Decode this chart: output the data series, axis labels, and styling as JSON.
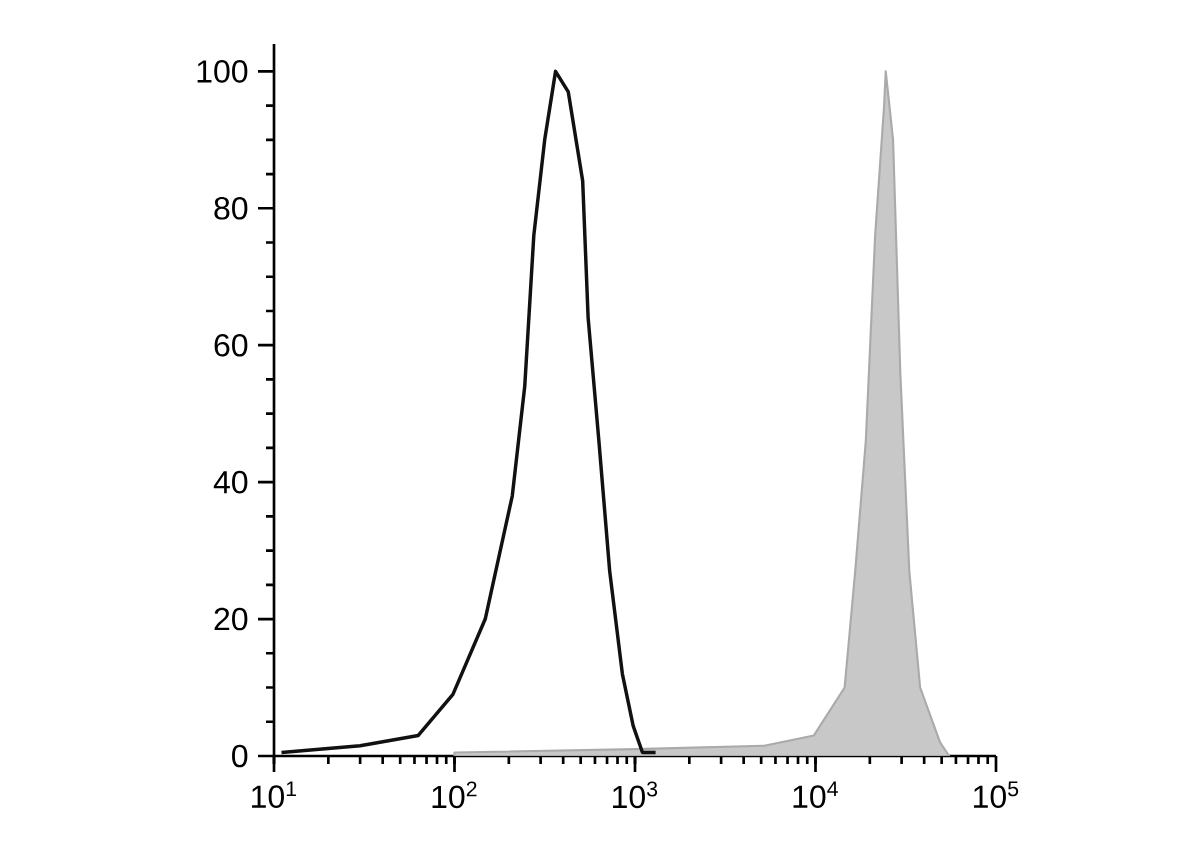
{
  "chart_data": {
    "type": "line",
    "log": "x",
    "grid": false,
    "xlim": [
      10,
      100000
    ],
    "ylim": [
      0,
      104
    ],
    "xticks": [
      {
        "value": 10,
        "label": "10$^{1}$"
      },
      {
        "value": 100,
        "label": "10$^{2}$"
      },
      {
        "value": 1000,
        "label": "10$^{3}$"
      },
      {
        "value": 10000,
        "label": "10$^{4}$"
      },
      {
        "value": 100000,
        "label": "10$^{5}$"
      }
    ],
    "yticks": [
      0,
      20,
      40,
      60,
      80,
      100
    ],
    "series": [
      {
        "type": "area",
        "color": "#c8c8c8",
        "x": [
          100,
          1000,
          5200,
          9800,
          14500,
          16600,
          19000,
          21400,
          24000,
          24500,
          26900,
          29500,
          33100,
          38000,
          49000,
          55000
        ],
        "values": [
          0.5,
          1,
          1.5,
          3,
          10,
          27,
          46,
          76,
          95,
          100,
          90,
          56,
          27,
          10,
          2,
          0
        ]
      },
      {
        "color": "#111111",
        "x": [
          11,
          30,
          63,
          98,
          148,
          209,
          245,
          275,
          316,
          363,
          427,
          513,
          550,
          631,
          724,
          851,
          977,
          1100,
          1300
        ],
        "values": [
          0.5,
          1.5,
          3,
          9,
          20,
          38,
          54,
          76,
          90,
          100,
          97,
          84,
          64,
          46,
          27,
          12,
          4.4,
          0.5,
          0.5
        ]
      }
    ]
  }
}
